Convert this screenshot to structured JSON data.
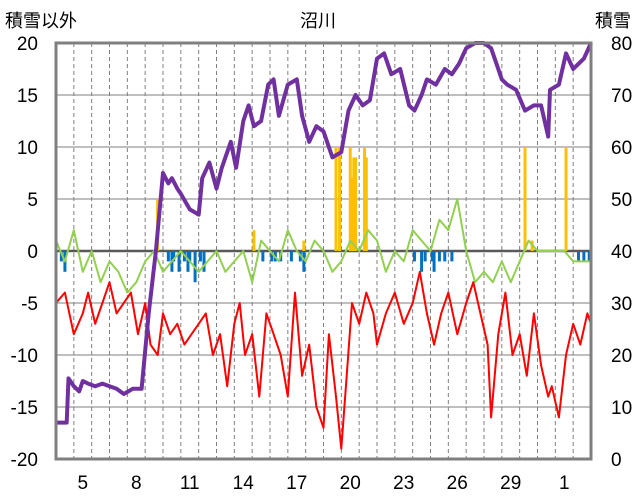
{
  "chart_data": {
    "type": "line",
    "title": "沼川",
    "ylabel_left": "積雪以外",
    "ylabel_right": "積雪",
    "ylim_left": [
      -20,
      20
    ],
    "ylim_right": [
      0,
      80
    ],
    "yticks_left": [
      "-20",
      "-15",
      "-10",
      "-5",
      "0",
      "5",
      "10",
      "15",
      "20"
    ],
    "yticks_right": [
      "0",
      "10",
      "20",
      "30",
      "40",
      "50",
      "60",
      "70",
      "80"
    ],
    "x_range_days": [
      0,
      30
    ],
    "xtick_labels": [
      "5",
      "8",
      "11",
      "14",
      "17",
      "20",
      "23",
      "26",
      "29",
      "1"
    ],
    "xtick_positions": [
      1.5,
      4.5,
      7.5,
      10.5,
      13.5,
      16.5,
      19.5,
      22.5,
      25.5,
      28.5
    ],
    "colors": {
      "snow_depth": "#7030a0",
      "temp_min": "#ff0000",
      "temp_mean": "#92d050",
      "precip": "#ffc000",
      "snow_change_neg": "#0070c0",
      "zero_line": "#595959",
      "frame": "#7f7f7f",
      "grid": "#7f7f7f"
    },
    "series": [
      {
        "name": "snow_depth",
        "axis": "right",
        "x": [
          0,
          0.6,
          0.7,
          1.0,
          1.3,
          1.5,
          1.8,
          2.2,
          2.6,
          3.0,
          3.4,
          3.8,
          4.3,
          4.8,
          5.2,
          5.6,
          6.0,
          6.3,
          6.5,
          6.8,
          7.0,
          7.5,
          8.0,
          8.2,
          8.6,
          9.0,
          9.3,
          9.8,
          10.1,
          10.5,
          10.8,
          11.1,
          11.5,
          11.9,
          12.2,
          12.5,
          13.0,
          13.5,
          13.8,
          14.2,
          14.6,
          15.0,
          15.5,
          16.0,
          16.4,
          16.8,
          17.2,
          17.6,
          18.0,
          18.4,
          18.8,
          19.3,
          19.8,
          20.1,
          20.5,
          20.8,
          21.3,
          21.8,
          22.2,
          22.6,
          23.0,
          23.5,
          24.0,
          24.4,
          24.7,
          25.0,
          25.3,
          25.8,
          26.3,
          26.8,
          27.2,
          27.6,
          27.7,
          28.2,
          28.6,
          29.0,
          29.3,
          29.6,
          30.0
        ],
        "y": [
          7,
          7,
          15.5,
          14,
          13,
          15,
          14.5,
          14,
          14.5,
          14,
          13.5,
          12.5,
          13.5,
          13.5,
          28,
          40,
          55,
          53,
          54,
          52,
          51,
          48,
          47,
          54,
          57,
          52,
          56,
          61,
          56,
          65,
          68,
          64,
          65,
          72,
          73,
          66,
          72,
          73,
          66,
          61,
          64,
          63,
          58,
          59,
          67,
          70,
          68,
          69,
          77,
          78,
          74,
          75,
          68,
          67,
          70,
          73,
          72,
          75,
          74,
          76,
          79,
          80,
          80,
          79,
          76,
          73,
          72,
          71,
          67,
          68,
          68,
          62,
          71,
          72,
          78,
          75,
          76,
          77,
          80
        ]
      },
      {
        "name": "temp_min",
        "axis": "left",
        "x": [
          0,
          0.5,
          1.0,
          1.5,
          1.8,
          2.2,
          2.6,
          3.0,
          3.4,
          3.8,
          4.2,
          4.6,
          5.0,
          5.3,
          5.7,
          6.0,
          6.4,
          6.8,
          7.2,
          7.6,
          8.0,
          8.4,
          8.8,
          9.2,
          9.6,
          10.0,
          10.3,
          10.6,
          11.0,
          11.4,
          11.8,
          12.2,
          12.6,
          13.0,
          13.4,
          13.8,
          14.2,
          14.6,
          15.0,
          15.3,
          15.7,
          16.0,
          16.3,
          16.6,
          17.0,
          17.4,
          17.8,
          18.0,
          18.5,
          19.0,
          19.5,
          20.0,
          20.4,
          20.8,
          21.2,
          21.6,
          22.0,
          22.5,
          23.0,
          23.4,
          23.8,
          24.2,
          24.4,
          24.8,
          25.2,
          25.6,
          26.0,
          26.4,
          26.8,
          27.2,
          27.6,
          27.8,
          28.2,
          28.6,
          29.0,
          29.4,
          29.8,
          30.0
        ],
        "y": [
          -5,
          -4,
          -8,
          -6,
          -4,
          -7,
          -5,
          -3,
          -6,
          -5,
          -4,
          -8,
          -5,
          -9,
          -10,
          -6,
          -8,
          -7,
          -9,
          -8,
          -7,
          -6,
          -10,
          -8,
          -13,
          -7,
          -5,
          -10,
          -8,
          -14,
          -6,
          -8,
          -10,
          -14,
          -4,
          -12,
          -9,
          -15,
          -17,
          -8,
          -14,
          -19,
          -12,
          -5,
          -7,
          -4,
          -6,
          -9,
          -6,
          -4,
          -7,
          -5,
          -2,
          -6,
          -9,
          -6,
          -4,
          -8,
          -5,
          -3,
          -6,
          -9,
          -16,
          -8,
          -4,
          -10,
          -8,
          -12,
          -6,
          -11,
          -14,
          -13,
          -16,
          -10,
          -7,
          -9,
          -6,
          -7
        ]
      },
      {
        "name": "temp_mean",
        "axis": "left",
        "x": [
          0,
          0.5,
          1.0,
          1.5,
          2.0,
          2.5,
          3.0,
          3.5,
          4.0,
          4.5,
          5.0,
          5.5,
          6.0,
          6.5,
          7.0,
          7.5,
          8.0,
          8.5,
          9.0,
          9.5,
          10.0,
          10.5,
          11.0,
          11.5,
          12.0,
          12.5,
          13.0,
          13.5,
          14.0,
          14.5,
          15.0,
          15.5,
          16.0,
          16.5,
          17.0,
          17.5,
          18.0,
          18.5,
          19.0,
          19.5,
          20.0,
          20.5,
          21.0,
          21.5,
          22.0,
          22.5,
          23.0,
          23.5,
          24.0,
          24.5,
          25.0,
          25.5,
          26.0,
          26.5,
          27.0,
          28.5,
          29.0,
          29.5,
          30.0
        ],
        "y": [
          1,
          -1,
          2,
          -2,
          0,
          -3,
          -1,
          -2,
          -4,
          -3,
          -1,
          0,
          -2,
          -1,
          0,
          -1,
          -2,
          -1,
          0,
          -2,
          -1,
          0,
          -3,
          1,
          0,
          -1,
          2,
          0,
          -1,
          1,
          0,
          -2,
          -1,
          1,
          0,
          2,
          1,
          -2,
          0,
          -1,
          2,
          1,
          0,
          3,
          2,
          5,
          0,
          -3,
          -2,
          -3,
          -1,
          -3,
          -1,
          1,
          0,
          0,
          -1,
          -1,
          -1
        ]
      }
    ],
    "bars": [
      {
        "name": "precip",
        "x": [
          5.7,
          11.1,
          13.9,
          15.7,
          15.9,
          16.5,
          16.6,
          16.7,
          16.8,
          17.3,
          17.4,
          26.3,
          26.7,
          28.6
        ],
        "y": [
          5,
          2,
          1,
          10,
          10,
          10,
          7,
          9,
          9,
          10,
          9,
          10,
          1,
          10
        ]
      },
      {
        "name": "snow_change_neg",
        "x": [
          0.3,
          0.5,
          6.3,
          6.5,
          6.6,
          6.9,
          7.2,
          7.4,
          7.5,
          7.8,
          8.1,
          8.3,
          11.6,
          12.1,
          12.3,
          12.6,
          13.2,
          13.7,
          13.9,
          20.1,
          20.5,
          20.7,
          21.1,
          21.2,
          21.5,
          21.8,
          22.2,
          29.3,
          29.6,
          29.9
        ],
        "y": [
          -1,
          -2,
          -1,
          -2,
          -1,
          -2,
          -1,
          -2,
          -1,
          -3,
          -1,
          -2,
          -1,
          -1,
          -1,
          -1,
          -1,
          -1,
          -2,
          -1,
          -2,
          -1,
          -1,
          -2,
          -1,
          -1,
          -1,
          -1,
          -1,
          -1
        ]
      }
    ]
  }
}
